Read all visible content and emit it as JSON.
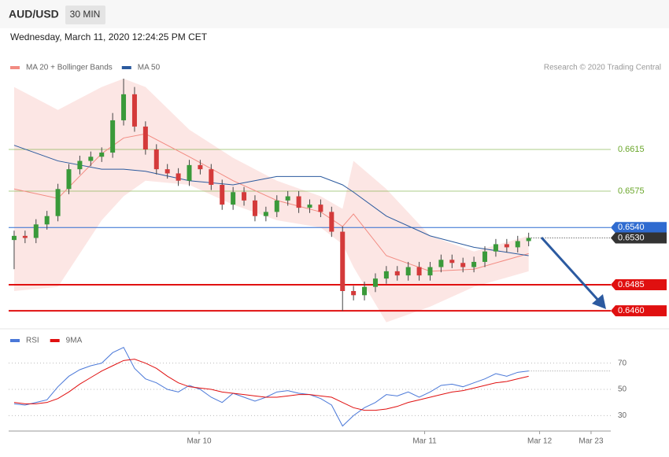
{
  "header": {
    "symbol": "AUD/USD",
    "timeframe": "30 MIN",
    "datetime": "Wednesday, March 11, 2020 12:24:25 PM CET"
  },
  "chart_data": [
    {
      "type": "candlestick",
      "credit": "Research © 2020 Trading Central",
      "xlim": [
        -0.5,
        54.5
      ],
      "ylim": [
        0.6445,
        0.6683
      ],
      "up_color": "#3a9a3a",
      "down_color": "#d43a3a",
      "open": [
        0.6528,
        0.6532,
        0.653,
        0.6543,
        0.6551,
        0.6577,
        0.6596,
        0.6604,
        0.6608,
        0.6612,
        0.6643,
        0.6668,
        0.6637,
        0.6615,
        0.6596,
        0.6592,
        0.6585,
        0.66,
        0.6596,
        0.6581,
        0.6562,
        0.6574,
        0.6566,
        0.6551,
        0.6555,
        0.6566,
        0.657,
        0.6559,
        0.6562,
        0.6555,
        0.6536,
        0.6479,
        0.6475,
        0.6483,
        0.6491,
        0.6498,
        0.6494,
        0.6502,
        0.6494,
        0.6502,
        0.6509,
        0.6506,
        0.6502,
        0.6507,
        0.6517,
        0.6524,
        0.6521,
        0.6527
      ],
      "high": [
        0.6537,
        0.6537,
        0.6548,
        0.6556,
        0.6582,
        0.6601,
        0.6609,
        0.6613,
        0.6617,
        0.665,
        0.6683,
        0.6675,
        0.6642,
        0.662,
        0.6601,
        0.6597,
        0.6605,
        0.6605,
        0.6601,
        0.6586,
        0.6579,
        0.6579,
        0.6571,
        0.656,
        0.6571,
        0.6575,
        0.6575,
        0.6567,
        0.6567,
        0.656,
        0.6541,
        0.6484,
        0.6488,
        0.6496,
        0.6503,
        0.6503,
        0.6507,
        0.6507,
        0.6507,
        0.6514,
        0.6514,
        0.6511,
        0.6512,
        0.6522,
        0.6529,
        0.6529,
        0.6532,
        0.6535
      ],
      "low": [
        0.65,
        0.6525,
        0.6525,
        0.6538,
        0.6546,
        0.6572,
        0.6591,
        0.6599,
        0.6603,
        0.6607,
        0.6638,
        0.6632,
        0.661,
        0.6591,
        0.6587,
        0.658,
        0.658,
        0.6591,
        0.6576,
        0.6557,
        0.6557,
        0.6561,
        0.6546,
        0.6546,
        0.655,
        0.6561,
        0.6554,
        0.6554,
        0.655,
        0.6531,
        0.646,
        0.647,
        0.647,
        0.6478,
        0.6486,
        0.6489,
        0.6489,
        0.6489,
        0.6489,
        0.6497,
        0.6501,
        0.6497,
        0.6497,
        0.6502,
        0.6512,
        0.6516,
        0.6516,
        0.6522
      ],
      "close": [
        0.6532,
        0.653,
        0.6543,
        0.6551,
        0.6577,
        0.6596,
        0.6604,
        0.6608,
        0.6612,
        0.6643,
        0.6668,
        0.6637,
        0.6615,
        0.6596,
        0.6592,
        0.6585,
        0.66,
        0.6596,
        0.6581,
        0.6562,
        0.6574,
        0.6566,
        0.6551,
        0.6555,
        0.6566,
        0.657,
        0.6559,
        0.6562,
        0.6555,
        0.6536,
        0.6479,
        0.6475,
        0.6483,
        0.6491,
        0.6498,
        0.6494,
        0.6502,
        0.6494,
        0.6502,
        0.6509,
        0.6506,
        0.6502,
        0.6507,
        0.6517,
        0.6524,
        0.6521,
        0.6527,
        0.653
      ],
      "series": [
        {
          "name": "MA 20 + Bollinger Bands",
          "color": "#f28b82",
          "x": [
            0,
            4,
            8,
            10,
            12,
            16,
            20,
            24,
            28,
            30,
            31,
            34,
            38,
            42,
            47
          ],
          "values": [
            0.6577,
            0.6568,
            0.6611,
            0.6626,
            0.663,
            0.6608,
            0.6585,
            0.6566,
            0.6555,
            0.6541,
            0.6553,
            0.6513,
            0.6498,
            0.65,
            0.6515
          ],
          "upper": [
            0.6675,
            0.6653,
            0.6675,
            0.6683,
            0.6675,
            0.6634,
            0.6607,
            0.6585,
            0.657,
            0.6558,
            0.6604,
            0.6577,
            0.6532,
            0.6517,
            0.6532
          ],
          "lower": [
            0.6479,
            0.6483,
            0.6547,
            0.657,
            0.6585,
            0.6581,
            0.6562,
            0.6547,
            0.654,
            0.6524,
            0.6502,
            0.6449,
            0.6464,
            0.6483,
            0.6498
          ]
        },
        {
          "name": "MA 50",
          "color": "#2b5a9e",
          "x": [
            0,
            4,
            8,
            10,
            12,
            16,
            20,
            24,
            28,
            30,
            31,
            34,
            38,
            42,
            47
          ],
          "values": [
            0.6619,
            0.6604,
            0.6596,
            0.6596,
            0.6594,
            0.6585,
            0.6581,
            0.6589,
            0.6589,
            0.6581,
            0.6574,
            0.6551,
            0.6532,
            0.6521,
            0.6513
          ]
        }
      ],
      "levels": [
        {
          "value": 0.6615,
          "label": "0.6615",
          "color": "#6aa62a",
          "style": "text"
        },
        {
          "value": 0.6575,
          "label": "0.6575",
          "color": "#6aa62a",
          "style": "text"
        },
        {
          "value": 0.654,
          "label": "0.6540",
          "color": "#2f6bd0",
          "style": "box"
        },
        {
          "value": 0.653,
          "label": "0.6530",
          "color": "#333333",
          "style": "current"
        },
        {
          "value": 0.6485,
          "label": "0.6485",
          "color": "#e01010",
          "style": "box"
        },
        {
          "value": 0.646,
          "label": "0.6460",
          "color": "#e01010",
          "style": "box"
        }
      ]
    },
    {
      "type": "line",
      "xlim": [
        -0.5,
        54.5
      ],
      "ylim": [
        20,
        83
      ],
      "yticks": [
        70,
        50,
        30
      ],
      "xticks": [
        {
          "value": 16.9,
          "label": "Mar 10"
        },
        {
          "value": 37.5,
          "label": "Mar 11"
        },
        {
          "value": 48,
          "label": "Mar 12"
        },
        {
          "value": 52.7,
          "label": "Mar 23"
        }
      ],
      "series": [
        {
          "name": "RSI",
          "color": "#4a78d8",
          "values": [
            39,
            38,
            40,
            42,
            52,
            60,
            65,
            68,
            70,
            78,
            82,
            66,
            58,
            55,
            50,
            48,
            53,
            50,
            44,
            40,
            47,
            44,
            41,
            44,
            48,
            49,
            47,
            46,
            43,
            38,
            22,
            30,
            36,
            40,
            46,
            45,
            48,
            44,
            48,
            53,
            54,
            52,
            55,
            58,
            62,
            60,
            63,
            64
          ]
        },
        {
          "name": "9MA",
          "color": "#e01010",
          "values": [
            40,
            39,
            39,
            40,
            43,
            48,
            54,
            59,
            64,
            68,
            72,
            73,
            70,
            66,
            60,
            55,
            52,
            51,
            50,
            48,
            47,
            46,
            45,
            44,
            44,
            45,
            46,
            46,
            45,
            44,
            40,
            36,
            34,
            34,
            35,
            37,
            40,
            42,
            44,
            46,
            48,
            49,
            51,
            53,
            55,
            56,
            58,
            60
          ]
        }
      ]
    }
  ]
}
